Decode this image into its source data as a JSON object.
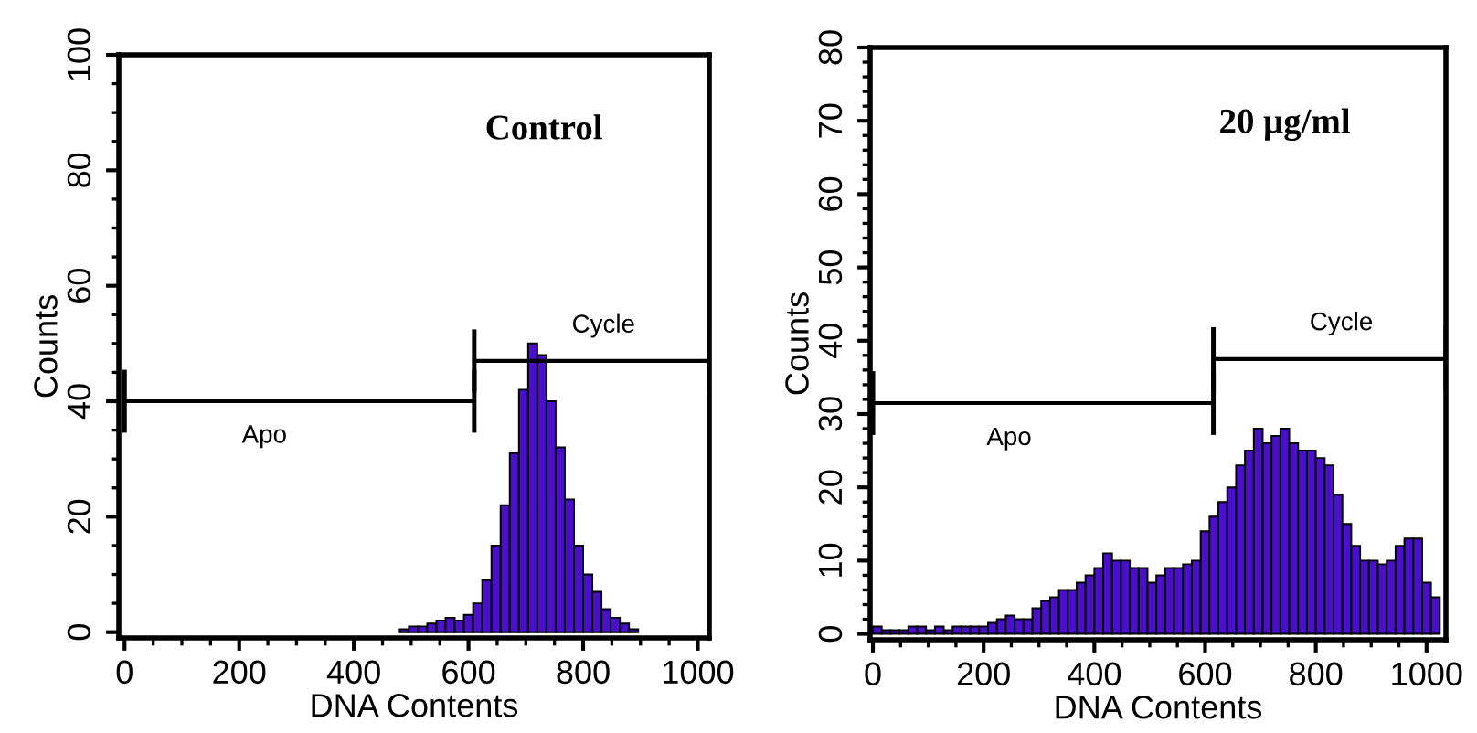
{
  "chart_data": [
    {
      "type": "histogram",
      "title": "Control",
      "xlabel": "DNA Contents",
      "ylabel": "Counts",
      "color": "#4a0fc8",
      "bins": [
        480,
        496,
        512,
        528,
        544,
        560,
        576,
        592,
        608,
        624,
        640,
        656,
        672,
        688,
        704,
        720,
        736,
        752,
        768,
        784,
        800,
        816,
        832,
        848,
        864,
        880,
        896
      ],
      "values": [
        0.5,
        1,
        1,
        1.5,
        2,
        2.5,
        2,
        3,
        5,
        9,
        15,
        22,
        31,
        42,
        50,
        48,
        40,
        32,
        23,
        15,
        10,
        7,
        4,
        2.5,
        1.5,
        0.5
      ],
      "xlim": [
        -10,
        1020
      ],
      "ylim": [
        -1,
        100
      ],
      "xticks": [
        0,
        200,
        400,
        600,
        800,
        1000
      ],
      "yticks": [
        0,
        20,
        40,
        60,
        80,
        100
      ],
      "series": [
        {
          "type": "line",
          "name": "Apo",
          "x": [
            0,
            610
          ],
          "values": [
            40,
            40
          ],
          "color": "#000000"
        },
        {
          "type": "line",
          "name": "Cycle",
          "x": [
            610,
            1020
          ],
          "values": [
            47,
            47
          ],
          "color": "#000000"
        }
      ]
    },
    {
      "type": "histogram",
      "title": "20 μg/ml",
      "xlabel": "DNA Contents",
      "ylabel": "Counts",
      "color": "#4a0fc8",
      "bins": [
        0,
        16,
        32,
        48,
        64,
        80,
        96,
        112,
        128,
        144,
        160,
        176,
        192,
        208,
        224,
        240,
        256,
        272,
        288,
        304,
        320,
        336,
        352,
        368,
        384,
        400,
        416,
        432,
        448,
        464,
        480,
        496,
        512,
        528,
        544,
        560,
        576,
        592,
        608,
        624,
        640,
        656,
        672,
        688,
        704,
        720,
        736,
        752,
        768,
        784,
        800,
        816,
        832,
        848,
        864,
        880,
        896,
        912,
        928,
        944,
        960,
        976,
        992,
        1008,
        1024
      ],
      "values": [
        1,
        0.5,
        0.5,
        0.5,
        1,
        1,
        0.5,
        1,
        0.5,
        1,
        1,
        1,
        1,
        1.5,
        2,
        2.5,
        2,
        2,
        3.5,
        4.5,
        5,
        6,
        6,
        7,
        8,
        9,
        11,
        10,
        10,
        9,
        9,
        7,
        8,
        9,
        9,
        9.5,
        10,
        14,
        16,
        18,
        20,
        23,
        25,
        28,
        26,
        27,
        28,
        26,
        25,
        25,
        24,
        23,
        19,
        15,
        12,
        10,
        10,
        9.5,
        10,
        12,
        13,
        13,
        7,
        5
      ],
      "xlim": [
        -5,
        1035
      ],
      "ylim": [
        -0.8,
        80
      ],
      "xticks": [
        0,
        200,
        400,
        600,
        800,
        1000
      ],
      "yticks": [
        0,
        10,
        20,
        30,
        40,
        50,
        60,
        70,
        80
      ],
      "series": [
        {
          "type": "line",
          "name": "Apo",
          "x": [
            0,
            615
          ],
          "values": [
            31.5,
            31.5
          ],
          "color": "#000000"
        },
        {
          "type": "line",
          "name": "Cycle",
          "x": [
            615,
            1035
          ],
          "values": [
            37.5,
            37.5
          ],
          "color": "#000000"
        }
      ]
    }
  ]
}
